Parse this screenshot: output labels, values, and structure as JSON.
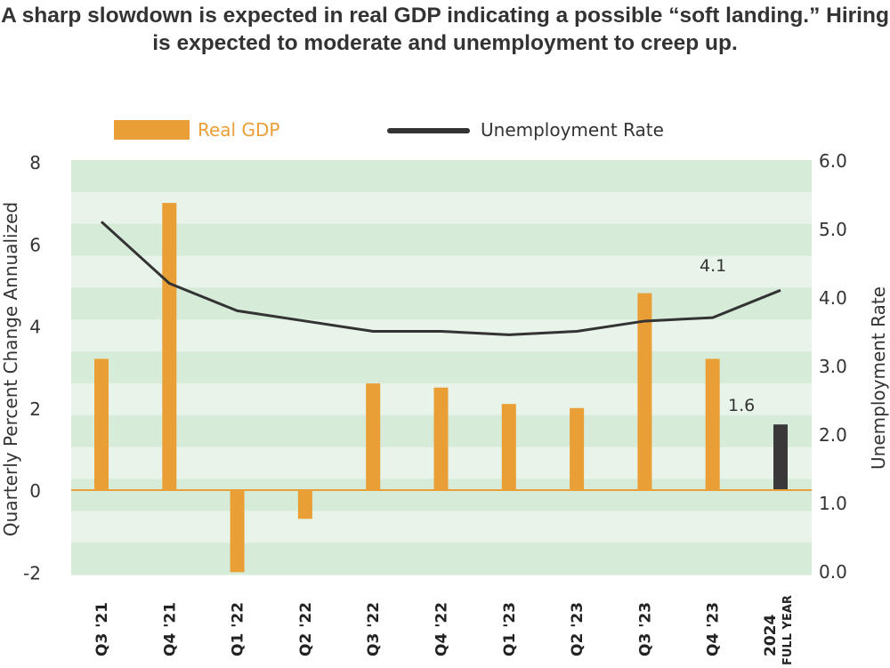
{
  "chart_data": {
    "type": "bar+line",
    "title": "A sharp slowdown is expected in real GDP indicating a possible “soft landing.” Hiring is expected to moderate and unemployment to creep up.",
    "categories": [
      "Q3 '21",
      "Q4 '21",
      "Q1 '22",
      "Q2 '22",
      "Q3 '22",
      "Q4 '22",
      "Q1 '23",
      "Q2 '23",
      "Q3 '23",
      "Q4 '23",
      "2024|FULL YEAR"
    ],
    "series": [
      {
        "name": "Real GDP",
        "type": "bar",
        "axis": "left",
        "color": "#ea9f36",
        "highlight_color": "#3a3839",
        "values": [
          3.2,
          7.0,
          -2.0,
          -0.7,
          2.6,
          2.5,
          2.1,
          2.0,
          4.8,
          3.2,
          1.6
        ]
      },
      {
        "name": "Unemployment Rate",
        "type": "line",
        "axis": "right",
        "color": "#333333",
        "values": [
          5.1,
          4.2,
          3.8,
          3.65,
          3.5,
          3.5,
          3.45,
          3.5,
          3.65,
          3.7,
          4.1
        ]
      }
    ],
    "annotations": {
      "gdp_2024": "1.6",
      "unemployment_2024": "4.1"
    },
    "ylabel": "Quarterly Percent Change Annualized",
    "ylim": [
      -2,
      8
    ],
    "yticks": [
      "-2",
      "0",
      "2",
      "4",
      "6",
      "8"
    ],
    "y2label": "Unemployment Rate",
    "y2lim": [
      0,
      6
    ],
    "y2ticks": [
      "0.0",
      "1.0",
      "2.0",
      "3.0",
      "4.0",
      "5.0",
      "6.0"
    ],
    "legend": "top",
    "grid": "horizontal green bands",
    "band_colors": [
      "#d6ebd8",
      "#e8f3e9"
    ]
  }
}
